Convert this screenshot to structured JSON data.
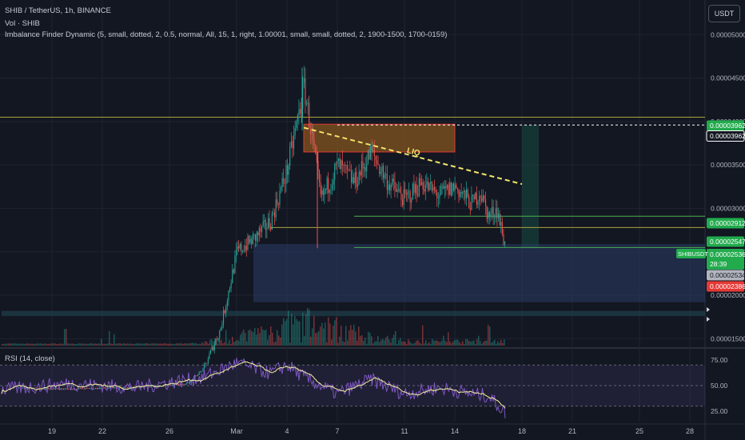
{
  "header": {
    "symbol_line": "SHIB / TetherUS, 1h, BINANCE",
    "vol_line": "Vol · SHIB",
    "indicator_line": "Imbalance Finder Dynamic (5, small, dotted, 2, 0.5, normal, All, 15, 1, right, 1.00001, small, small, dotted, 2, 1900-1500, 1700-0159)",
    "rsi_label": "RSI (14, close)"
  },
  "currency_button": "USDT",
  "chart_data": {
    "type": "candlestick",
    "symbol": "SHIB / TetherUS",
    "timeframe": "1h",
    "exchange": "BINANCE",
    "price_axis": {
      "range": [
        1.42e-05,
        5.4e-05
      ],
      "ticks": [
        {
          "value": 1.5e-05,
          "label": "0.00001500"
        },
        {
          "value": 2e-05,
          "label": "0.00002000"
        },
        {
          "value": 2.5e-05,
          "label": "0.00002500"
        },
        {
          "value": 3e-05,
          "label": "0.00003000"
        },
        {
          "value": 3.5e-05,
          "label": "0.00003500"
        },
        {
          "value": 4e-05,
          "label": "0.00004000"
        },
        {
          "value": 4.5e-05,
          "label": "0.00004500"
        },
        {
          "value": 5e-05,
          "label": "0.00005000"
        }
      ]
    },
    "price_labels": [
      {
        "value": 3.962e-05,
        "label": "0.00003962",
        "color": "#22ab4d",
        "style": "filled"
      },
      {
        "value": 3.962e-05,
        "label": "0.00003962",
        "color": "#ffffff",
        "style": "outlined"
      },
      {
        "value": 2.912e-05,
        "label": "0.00002912",
        "color": "#22ab4d",
        "style": "filled"
      },
      {
        "value": 2.547e-05,
        "label": "0.00002547",
        "color": "#22ab4d",
        "style": "filled"
      },
      {
        "value": 2.534e-05,
        "label": "0.00002534",
        "color": "#b2b5be",
        "style": "light"
      },
      {
        "value": 2.386e-05,
        "label": "0.00002386",
        "color": "#e53935",
        "style": "filled"
      }
    ],
    "last_price": {
      "label": "0.00002536",
      "countdown": "28:39",
      "symbol_tag": "SHIBUSDT",
      "color": "#22ab4d"
    },
    "x_axis_labels": [
      "19",
      "22",
      "26",
      "Mar",
      "4",
      "7",
      "11",
      "14",
      "18",
      "21",
      "25",
      "28"
    ],
    "x_axis_dates": [
      "Feb 19",
      "Feb 22",
      "Feb 26",
      "Mar 1",
      "Mar 4",
      "Mar 7",
      "Mar 11",
      "Mar 14",
      "Mar 18",
      "Mar 21",
      "Mar 25",
      "Mar 28"
    ],
    "price_path": [
      {
        "date": "Feb 17",
        "price": 9.3e-06
      },
      {
        "date": "Feb 20",
        "price": 9.2e-06
      },
      {
        "date": "Feb 24",
        "price": 9.4e-06
      },
      {
        "date": "Feb 27",
        "price": 9.8e-06
      },
      {
        "date": "Feb 28",
        "price": 1.15e-05
      },
      {
        "date": "Feb 29",
        "price": 1.6e-05
      },
      {
        "date": "Mar 1",
        "price": 2.5e-05
      },
      {
        "date": "Mar 2",
        "price": 2.65e-05
      },
      {
        "date": "Mar 3",
        "price": 2.85e-05
      },
      {
        "date": "Mar 4",
        "price": 3.45e-05
      },
      {
        "date": "Mar 5",
        "price": 4.4e-05
      },
      {
        "date": "Mar 5",
        "price": 3.8e-05
      },
      {
        "date": "Mar 6",
        "price": 3.1e-05
      },
      {
        "date": "Mar 7",
        "price": 3.5e-05
      },
      {
        "date": "Mar 8",
        "price": 3.3e-05
      },
      {
        "date": "Mar 9",
        "price": 3.65e-05
      },
      {
        "date": "Mar 10",
        "price": 3.3e-05
      },
      {
        "date": "Mar 11",
        "price": 3.1e-05
      },
      {
        "date": "Mar 12",
        "price": 3.3e-05
      },
      {
        "date": "Mar 13",
        "price": 3.15e-05
      },
      {
        "date": "Mar 14",
        "price": 3.25e-05
      },
      {
        "date": "Mar 15",
        "price": 3.05e-05
      },
      {
        "date": "Mar 15",
        "price": 3.2e-05
      },
      {
        "date": "Mar 16",
        "price": 2.9e-05
      },
      {
        "date": "Mar 16",
        "price": 3e-05
      },
      {
        "date": "Mar 17",
        "price": 2.54e-05
      }
    ],
    "zones": [
      {
        "type": "supply",
        "from": "Mar 5",
        "to": "Mar 14",
        "top": 3.97e-05,
        "bottom": 3.65e-05,
        "fill": "#8a5a1e",
        "border": "#e53935"
      },
      {
        "type": "target",
        "from": "Mar 18",
        "to": "Mar 19",
        "top": 3.96e-05,
        "bottom": 2.54e-05,
        "fill": "#1a4a44"
      },
      {
        "type": "imbalance",
        "from": "Mar 2",
        "to": "Mar 29",
        "top": 2.59e-05,
        "bottom": 1.92e-05,
        "fill": "#2a3d66"
      },
      {
        "type": "imbalance",
        "from": "Feb 16",
        "to": "Mar 29",
        "top": 1.82e-05,
        "bottom": 1.76e-05,
        "fill": "#234a55"
      }
    ],
    "levels": [
      {
        "value": 4.05e-05,
        "color": "#a8a33a",
        "style": "solid"
      },
      {
        "value": 3.96e-05,
        "color": "#ffffff",
        "style": "dashed"
      },
      {
        "value": 2.91e-05,
        "color": "#4caf50",
        "style": "solid"
      },
      {
        "value": 2.78e-05,
        "color": "#a8a33a",
        "style": "solid"
      },
      {
        "value": 2.55e-05,
        "color": "#4caf50",
        "style": "solid"
      }
    ],
    "trendline": {
      "from": {
        "date": "Mar 5",
        "price": 3.93e-05
      },
      "to": {
        "date": "Mar 18",
        "price": 3.28e-05
      },
      "color": "#f2e46a",
      "style": "dashed",
      "label": "LIQ"
    },
    "volume": {
      "date_range": [
        "Feb 16",
        "Mar 17"
      ],
      "peak_date": "Mar 5"
    },
    "rsi": {
      "name": "RSI (14, close)",
      "range": [
        15,
        85
      ],
      "ticks": [
        {
          "value": 75,
          "label": "75.00"
        },
        {
          "value": 50,
          "label": "50.00"
        },
        {
          "value": 25,
          "label": "25.00"
        }
      ],
      "upper_band": 70,
      "lower_band": 30,
      "values": [
        {
          "date": "Feb 16",
          "value": 46
        },
        {
          "date": "Feb 20",
          "value": 52
        },
        {
          "date": "Feb 24",
          "value": 48
        },
        {
          "date": "Feb 28",
          "value": 58
        },
        {
          "date": "Mar 1",
          "value": 72
        },
        {
          "date": "Mar 3",
          "value": 62
        },
        {
          "date": "Mar 4",
          "value": 70
        },
        {
          "date": "Mar 5",
          "value": 58
        },
        {
          "date": "Mar 7",
          "value": 42
        },
        {
          "date": "Mar 9",
          "value": 56
        },
        {
          "date": "Mar 11",
          "value": 42
        },
        {
          "date": "Mar 13",
          "value": 48
        },
        {
          "date": "Mar 15",
          "value": 42
        },
        {
          "date": "Mar 16",
          "value": 40
        },
        {
          "date": "Mar 17",
          "value": 24
        }
      ]
    }
  },
  "colors": {
    "background": "#131722",
    "grid": "#1f2330",
    "up": "#26a69a",
    "down": "#ef5350",
    "rsi_line": "#7e57c2",
    "rsi_ma": "#f5f0a0"
  }
}
